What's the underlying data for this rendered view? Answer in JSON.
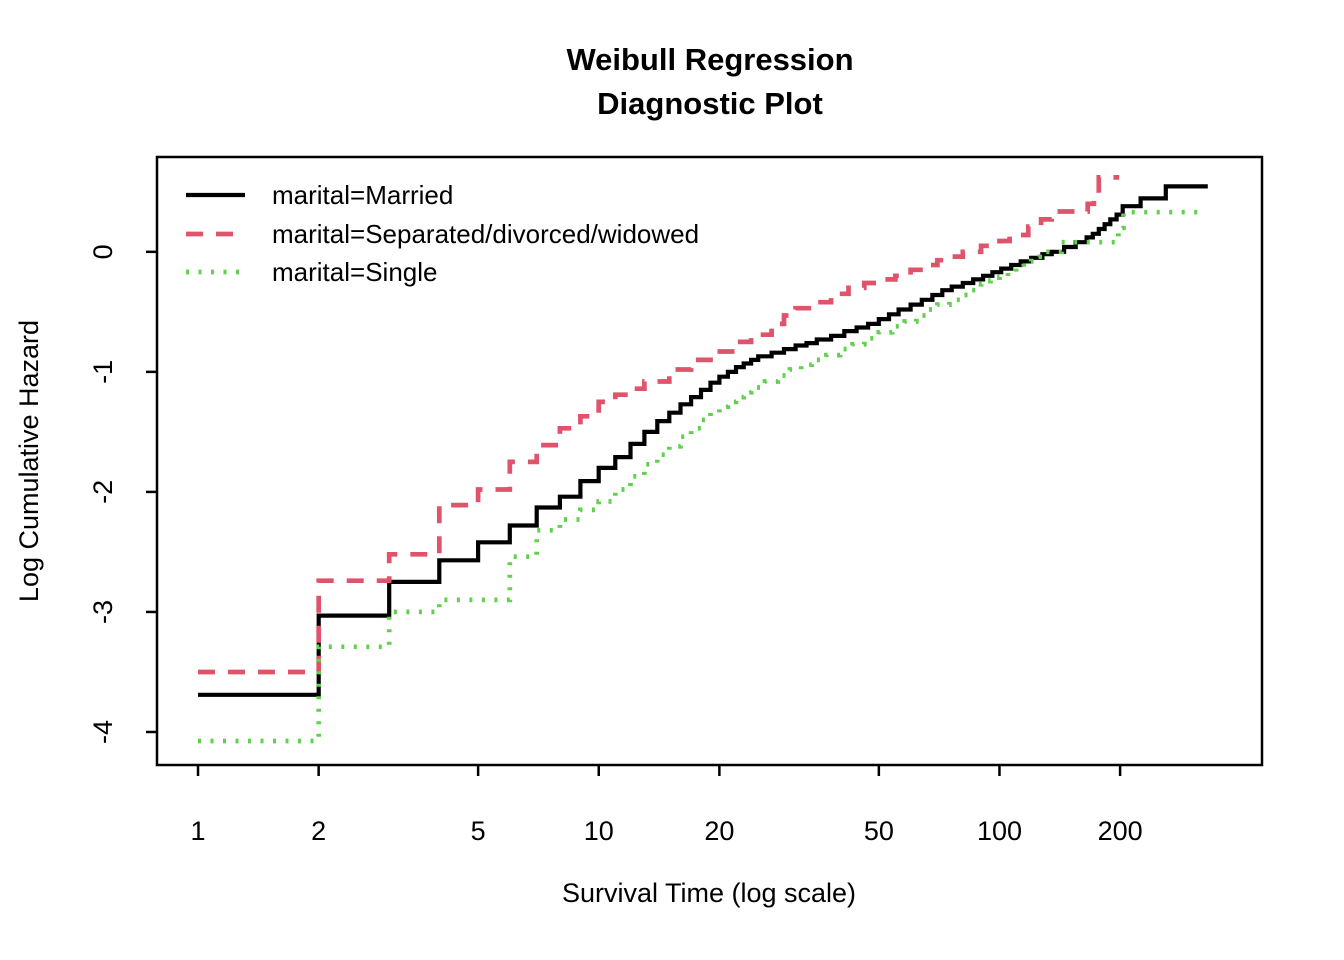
{
  "title": {
    "line1": "Weibull Regression",
    "line2": "Diagnostic Plot"
  },
  "axes": {
    "x": {
      "label": "Survival Time (log scale)",
      "scale": "log10",
      "tick_values": [
        1,
        2,
        5,
        10,
        20,
        50,
        100,
        200
      ],
      "range": [
        0.79,
        452
      ]
    },
    "y": {
      "label": "Log Cumulative Hazard",
      "scale": "linear",
      "tick_values": [
        0,
        -1,
        -2,
        -3,
        -4
      ],
      "range": [
        -4.275,
        0.79
      ]
    }
  },
  "colors": {
    "married": "#000000",
    "separated": "#DF536B",
    "single": "#61D04F",
    "frame": "#000000",
    "background": "#ffffff"
  },
  "chart_data": {
    "type": "line",
    "subtype": "step-after-staircase",
    "title": "Weibull Regression Diagnostic Plot",
    "xlabel": "Survival Time (log scale)",
    "ylabel": "Log Cumulative Hazard",
    "x_scale": "log10",
    "xlim": [
      0.79,
      452
    ],
    "ylim": [
      -4.275,
      0.79
    ],
    "grid": false,
    "legend_position": "top-left-inside",
    "series": [
      {
        "id": "married",
        "name": "marital=Married",
        "color": "#000000",
        "line_style": "solid",
        "t_end": 331,
        "step": [
          [
            1,
            -3.69
          ],
          [
            2,
            -3.03
          ],
          [
            3,
            -2.75
          ],
          [
            4,
            -2.57
          ],
          [
            5,
            -2.42
          ],
          [
            6,
            -2.28
          ],
          [
            7,
            -2.13
          ],
          [
            8,
            -2.04
          ],
          [
            9,
            -1.91
          ],
          [
            10,
            -1.8
          ],
          [
            11,
            -1.71
          ],
          [
            12,
            -1.6
          ],
          [
            13,
            -1.5
          ],
          [
            14,
            -1.41
          ],
          [
            15,
            -1.34
          ],
          [
            16,
            -1.27
          ],
          [
            17,
            -1.21
          ],
          [
            18,
            -1.15
          ],
          [
            19,
            -1.09
          ],
          [
            20,
            -1.04
          ],
          [
            21,
            -1.0
          ],
          [
            22,
            -0.96
          ],
          [
            23,
            -0.93
          ],
          [
            24,
            -0.9
          ],
          [
            25,
            -0.87
          ],
          [
            27,
            -0.84
          ],
          [
            29,
            -0.81
          ],
          [
            31,
            -0.78
          ],
          [
            33,
            -0.76
          ],
          [
            35,
            -0.73
          ],
          [
            38,
            -0.7
          ],
          [
            41,
            -0.66
          ],
          [
            44,
            -0.63
          ],
          [
            47,
            -0.6
          ],
          [
            50,
            -0.56
          ],
          [
            53,
            -0.52
          ],
          [
            56,
            -0.48
          ],
          [
            60,
            -0.44
          ],
          [
            64,
            -0.4
          ],
          [
            68,
            -0.36
          ],
          [
            72,
            -0.32
          ],
          [
            76,
            -0.29
          ],
          [
            81,
            -0.26
          ],
          [
            86,
            -0.23
          ],
          [
            91,
            -0.2
          ],
          [
            96,
            -0.17
          ],
          [
            101,
            -0.14
          ],
          [
            107,
            -0.11
          ],
          [
            113,
            -0.08
          ],
          [
            120,
            -0.05
          ],
          [
            128,
            -0.02
          ],
          [
            135,
            0.0
          ],
          [
            145,
            0.04
          ],
          [
            155,
            0.08
          ],
          [
            165,
            0.12
          ],
          [
            171,
            0.15
          ],
          [
            177,
            0.19
          ],
          [
            183,
            0.23
          ],
          [
            189,
            0.27
          ],
          [
            196,
            0.31
          ],
          [
            203,
            0.38
          ],
          [
            225,
            0.445
          ],
          [
            260,
            0.545
          ]
        ]
      },
      {
        "id": "separated",
        "name": "marital=Separated/divorced/widowed",
        "color": "#DF536B",
        "line_style": "dashed",
        "t_end": 199,
        "step": [
          [
            1,
            -3.5
          ],
          [
            2,
            -2.74
          ],
          [
            3,
            -2.52
          ],
          [
            4,
            -2.11
          ],
          [
            5,
            -1.98
          ],
          [
            6,
            -1.75
          ],
          [
            7,
            -1.61
          ],
          [
            8,
            -1.47
          ],
          [
            9,
            -1.37
          ],
          [
            10,
            -1.25
          ],
          [
            11,
            -1.19
          ],
          [
            12,
            -1.14
          ],
          [
            13,
            -1.08
          ],
          [
            15,
            -0.98
          ],
          [
            17,
            -0.9
          ],
          [
            19,
            -0.83
          ],
          [
            22,
            -0.75
          ],
          [
            24,
            -0.69
          ],
          [
            27,
            -0.6
          ],
          [
            29,
            -0.53
          ],
          [
            31,
            -0.47
          ],
          [
            34,
            -0.42
          ],
          [
            38,
            -0.35
          ],
          [
            42,
            -0.3
          ],
          [
            46,
            -0.26
          ],
          [
            50,
            -0.23
          ],
          [
            55,
            -0.2
          ],
          [
            60,
            -0.15
          ],
          [
            65,
            -0.11
          ],
          [
            70,
            -0.07
          ],
          [
            76,
            -0.04
          ],
          [
            81,
            0.0
          ],
          [
            90,
            0.05
          ],
          [
            100,
            0.09
          ],
          [
            106,
            0.14
          ],
          [
            118,
            0.21
          ],
          [
            127,
            0.27
          ],
          [
            135,
            0.336
          ],
          [
            166,
            0.4
          ],
          [
            172,
            0.475
          ],
          [
            177,
            0.62
          ]
        ]
      },
      {
        "id": "single",
        "name": "marital=Single",
        "color": "#61D04F",
        "line_style": "dotted",
        "t_end": 322,
        "step": [
          [
            1,
            -4.075
          ],
          [
            2,
            -3.29
          ],
          [
            3,
            -3.0
          ],
          [
            4,
            -2.9
          ],
          [
            6,
            -2.54
          ],
          [
            7,
            -2.32
          ],
          [
            8,
            -2.23
          ],
          [
            9,
            -2.15
          ],
          [
            10,
            -2.08
          ],
          [
            11,
            -1.98
          ],
          [
            12,
            -1.87
          ],
          [
            13,
            -1.77
          ],
          [
            14,
            -1.69
          ],
          [
            15,
            -1.62
          ],
          [
            16,
            -1.54
          ],
          [
            17,
            -1.47
          ],
          [
            18,
            -1.4
          ],
          [
            19,
            -1.34
          ],
          [
            20,
            -1.29
          ],
          [
            21,
            -1.25
          ],
          [
            22,
            -1.21
          ],
          [
            23,
            -1.17
          ],
          [
            24,
            -1.13
          ],
          [
            26,
            -1.08
          ],
          [
            28,
            -1.03
          ],
          [
            30,
            -0.98
          ],
          [
            32,
            -0.94
          ],
          [
            34,
            -0.9
          ],
          [
            37,
            -0.86
          ],
          [
            40,
            -0.81
          ],
          [
            43,
            -0.77
          ],
          [
            46,
            -0.72
          ],
          [
            50,
            -0.67
          ],
          [
            54,
            -0.62
          ],
          [
            58,
            -0.58
          ],
          [
            62,
            -0.53
          ],
          [
            66,
            -0.48
          ],
          [
            70,
            -0.44
          ],
          [
            75,
            -0.4
          ],
          [
            80,
            -0.36
          ],
          [
            85,
            -0.32
          ],
          [
            90,
            -0.27
          ],
          [
            95,
            -0.24
          ],
          [
            100,
            -0.21
          ],
          [
            105,
            -0.17
          ],
          [
            110,
            -0.13
          ],
          [
            115,
            -0.08
          ],
          [
            120,
            -0.04
          ],
          [
            126,
            0.0
          ],
          [
            143,
            0.08
          ],
          [
            198,
            0.2
          ],
          [
            204,
            0.33
          ]
        ]
      }
    ]
  }
}
